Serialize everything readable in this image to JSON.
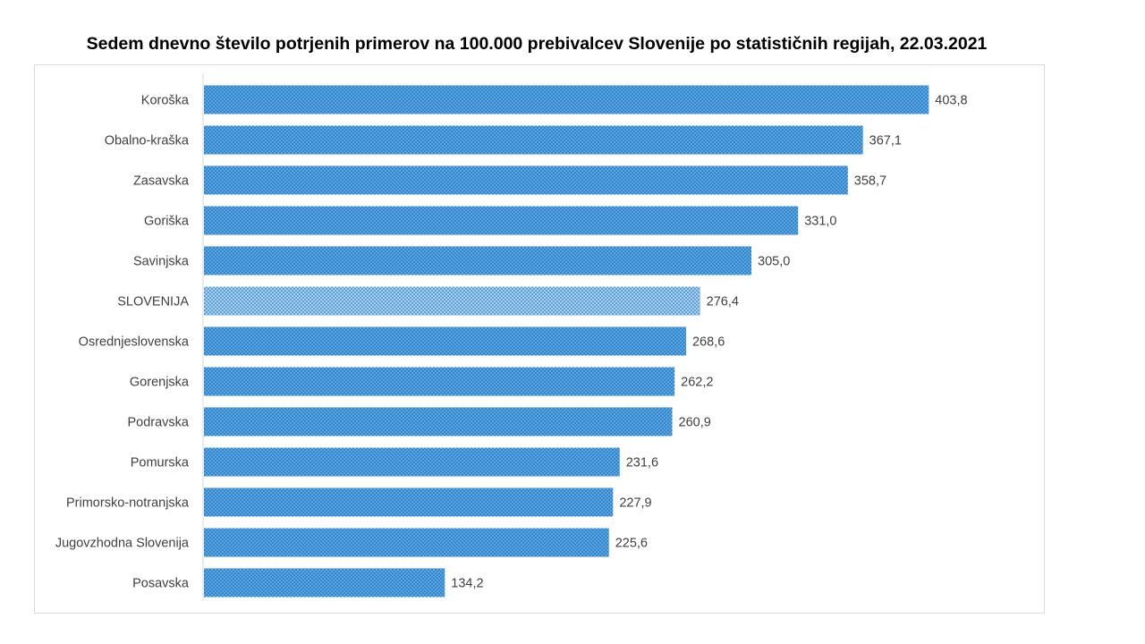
{
  "chart_data": {
    "type": "bar",
    "orientation": "horizontal",
    "title": "Sedem dnevno število potrjenih primerov na 100.000 prebivalcev Slovenije po statističnih regijah, 22.03.2021",
    "categories": [
      "Koroška",
      "Obalno-kraška",
      "Zasavska",
      "Goriška",
      "Savinjska",
      "SLOVENIJA",
      "Osrednjeslovenska",
      "Gorenjska",
      "Podravska",
      "Pomurska",
      "Primorsko-notranjska",
      "Jugovzhodna Slovenija",
      "Posavska"
    ],
    "values": [
      403.8,
      367.1,
      358.7,
      331.0,
      305.0,
      276.4,
      268.6,
      262.2,
      260.9,
      231.6,
      227.9,
      225.6,
      134.2
    ],
    "value_labels": [
      "403,8",
      "367,1",
      "358,7",
      "331,0",
      "305,0",
      "276,4",
      "268,6",
      "262,2",
      "260,9",
      "231,6",
      "227,9",
      "225,6",
      "134,2"
    ],
    "highlight_category": "SLOVENIJA",
    "xlim": [
      0,
      450
    ],
    "grid": false,
    "legend": "none",
    "colors": {
      "bar": "#2e86cf",
      "bar_pattern_dot": "#9ccbee",
      "highlight_bar": "#7fb7df",
      "highlight_pattern_dot": "#e8f3fb",
      "text": "#404040",
      "axis": "#d9d9d9"
    }
  }
}
